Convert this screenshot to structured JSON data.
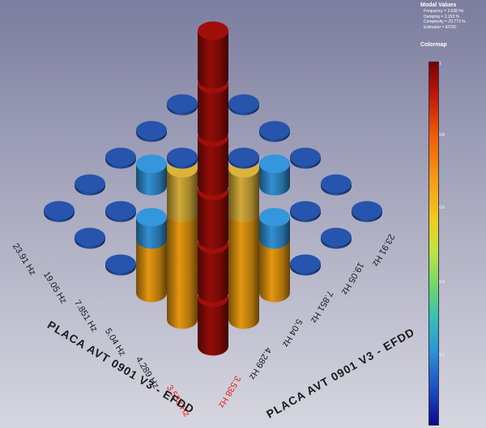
{
  "info": {
    "modal_title": "Modal Values",
    "modal_lines": [
      "Frequency = 3.538 Hz",
      "Damping = 2.153 %",
      "Complexity = 20.773 %",
      "Estimator = EFDD"
    ],
    "colormap_title": "Colormap",
    "colormap_ticks": [
      "1",
      "0.8",
      "0.6",
      "0.4",
      "0.2"
    ]
  },
  "plot": {
    "left_title": "PLACA AVT 0901 V3 - EFDD",
    "right_title": "PLACA AVT 0901 V3 - EFDD",
    "left_frequencies": [
      "23.91 Hz",
      "19.05 Hz",
      "7.851 Hz",
      "5.04 Hz",
      "4.289 Hz",
      "3.538 Hz"
    ],
    "right_frequencies": [
      "23.91 Hz",
      "19.05 Hz",
      "7.851 Hz",
      "5.04 Hz",
      "4.289 Hz",
      "3.538 Hz"
    ]
  },
  "colors": {
    "low": "#234c9c",
    "mid": "#2f88c8",
    "high": "#c8a236",
    "orange": "#d9900f",
    "max": "#8c0c08",
    "highlight_label": "#e8231c"
  },
  "chart_data": {
    "type": "bar",
    "title": "",
    "description_3d": "3D MAC matrix style bar plot of modal values",
    "rows": [
      "23.91 Hz",
      "19.05 Hz",
      "7.851 Hz",
      "5.04 Hz",
      "4.289 Hz",
      "3.538 Hz"
    ],
    "cols": [
      "23.91 Hz",
      "19.05 Hz",
      "7.851 Hz",
      "5.04 Hz",
      "4.289 Hz",
      "3.538 Hz"
    ],
    "values": [
      [
        1.0,
        0.0,
        0.0,
        0.0,
        0.0,
        0.0
      ],
      [
        0.0,
        1.0,
        0.0,
        0.25,
        0.0,
        0.0
      ],
      [
        0.0,
        0.0,
        1.0,
        0.5,
        0.25,
        0.0
      ],
      [
        0.0,
        0.25,
        0.5,
        1.0,
        0.6,
        0.6
      ],
      [
        0.0,
        0.0,
        0.25,
        0.6,
        1.0,
        0.6
      ],
      [
        0.0,
        0.0,
        0.0,
        0.6,
        0.6,
        1.0
      ]
    ],
    "colorbar_range": [
      0,
      1
    ],
    "grid": false
  }
}
